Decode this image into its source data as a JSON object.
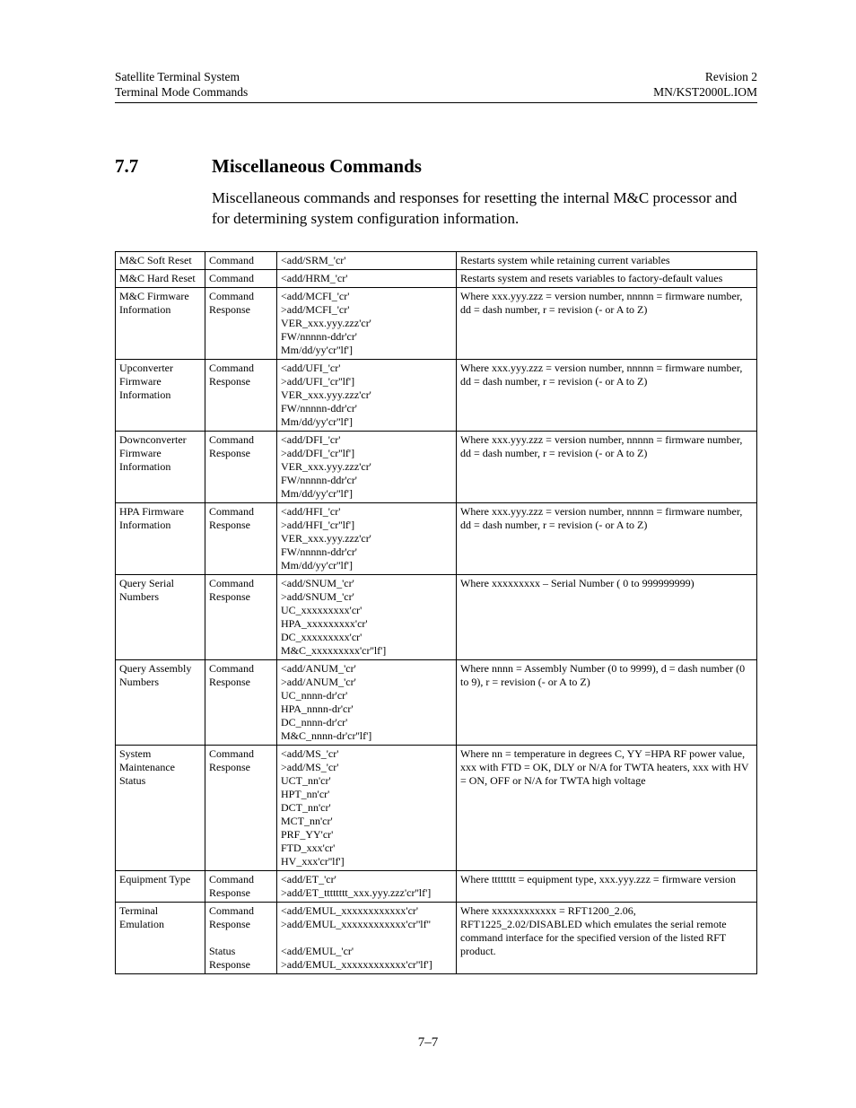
{
  "header": {
    "left1": "Satellite Terminal System",
    "left2": "Terminal Mode Commands",
    "right1": "Revision 2",
    "right2": "MN/KST2000L.IOM"
  },
  "section": {
    "number": "7.7",
    "title": "Miscellaneous Commands",
    "intro": "Miscellaneous commands and responses for resetting the internal M&C processor and for determining system configuration information."
  },
  "rows": [
    {
      "name": "M&C Soft Reset",
      "type": "Command",
      "syntax": "<add/SRM_'cr'",
      "desc": "Restarts system while retaining current variables"
    },
    {
      "name": "M&C Hard Reset",
      "type": "Command",
      "syntax": "<add/HRM_'cr'",
      "desc": "Restarts system and resets variables to factory-default values"
    },
    {
      "name": "M&C Firmware Information",
      "type": "Command\nResponse",
      "syntax": "<add/MCFI_'cr'\n>add/MCFI_'cr'\nVER_xxx.yyy.zzz'cr'\nFW/nnnnn-ddr'cr'\nMm/dd/yy'cr''lf']",
      "desc": "Where xxx.yyy.zzz = version number, nnnnn = firmware number, dd = dash number, r = revision (- or A to Z)"
    },
    {
      "name": "Upconverter Firmware Information",
      "type": "Command\nResponse",
      "syntax": "<add/UFI_'cr'\n>add/UFI_'cr''lf']\nVER_xxx.yyy.zzz'cr'\nFW/nnnnn-ddr'cr'\nMm/dd/yy'cr''lf']",
      "desc": "Where xxx.yyy.zzz = version number, nnnnn = firmware number, dd = dash number, r = revision (- or A to Z)"
    },
    {
      "name": "Downconverter Firmware Information",
      "type": "Command\nResponse",
      "syntax": "<add/DFI_'cr'\n>add/DFI_'cr''lf']\nVER_xxx.yyy.zzz'cr'\nFW/nnnnn-ddr'cr'\nMm/dd/yy'cr''lf']",
      "desc": "Where xxx.yyy.zzz = version number, nnnnn = firmware number, dd = dash number, r = revision (- or A to Z)"
    },
    {
      "name": "HPA Firmware Information",
      "type": "Command\nResponse",
      "syntax": "<add/HFI_'cr'\n>add/HFI_'cr''lf']\nVER_xxx.yyy.zzz'cr'\nFW/nnnnn-ddr'cr'\nMm/dd/yy'cr''lf']",
      "desc": "Where xxx.yyy.zzz = version number, nnnnn = firmware number, dd = dash number, r = revision (- or A to Z)"
    },
    {
      "name": "Query Serial Numbers",
      "type": "Command\nResponse",
      "syntax": "<add/SNUM_'cr'\n>add/SNUM_'cr'\nUC_xxxxxxxxx'cr'\nHPA_xxxxxxxxx'cr'\nDC_xxxxxxxxx'cr'\nM&C_xxxxxxxxx'cr''lf']",
      "desc": "Where xxxxxxxxx – Serial Number ( 0 to 999999999)"
    },
    {
      "name": "Query Assembly Numbers",
      "type": "Command\nResponse",
      "syntax": "<add/ANUM_'cr'\n>add/ANUM_'cr'\nUC_nnnn-dr'cr'\nHPA_nnnn-dr'cr'\nDC_nnnn-dr'cr'\nM&C_nnnn-dr'cr''lf']",
      "desc": "Where nnnn = Assembly Number (0 to 9999), d = dash number (0 to 9), r = revision (- or A to Z)"
    },
    {
      "name": "System Maintenance Status",
      "type": "Command\nResponse",
      "syntax": "<add/MS_'cr'\n>add/MS_'cr'\nUCT_nn'cr'\nHPT_nn'cr'\nDCT_nn'cr'\nMCT_nn'cr'\nPRF_YY'cr'\nFTD_xxx'cr'\nHV_xxx'cr''lf']",
      "desc": "Where nn = temperature in degrees C, YY =HPA RF power value, xxx with FTD = OK, DLY or N/A for TWTA heaters, xxx with HV = ON, OFF or N/A for TWTA high voltage"
    },
    {
      "name": "Equipment Type",
      "type": "Command\nResponse",
      "syntax": "<add/ET_'cr'\n>add/ET_tttttttt_xxx.yyy.zzz'cr''lf']",
      "desc": "Where tttttttt = equipment type, xxx.yyy.zzz = firmware version"
    },
    {
      "name": "Terminal Emulation",
      "type": "Command\nResponse\n\nStatus\nResponse",
      "syntax": "<add/EMUL_xxxxxxxxxxxx'cr'\n>add/EMUL_xxxxxxxxxxxx'cr''lf''\n\n<add/EMUL_'cr'\n>add/EMUL_xxxxxxxxxxxx'cr''lf']",
      "desc": "Where xxxxxxxxxxxx = RFT1200_2.06, RFT1225_2.02/DISABLED which emulates the serial remote command interface for the specified version of the listed RFT product."
    }
  ],
  "footer": "7–7"
}
